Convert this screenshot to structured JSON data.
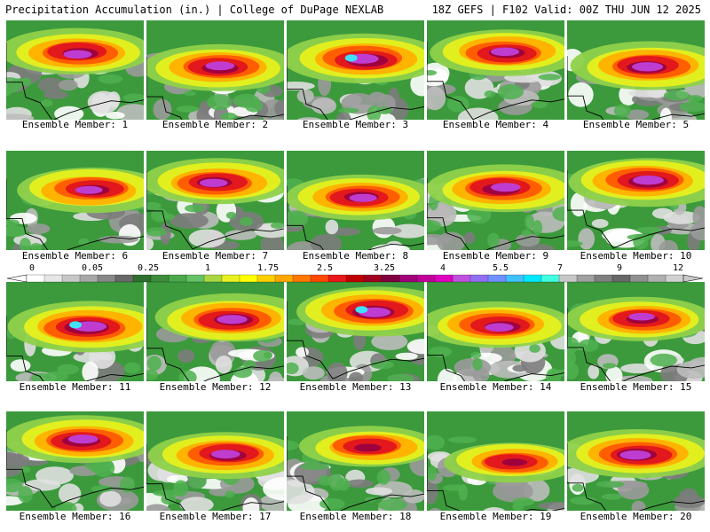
{
  "header": {
    "left": "Precipitation Accumulation (in.) | College of DuPage NEXLAB",
    "right": "18Z GEFS | F102 Valid: 00Z THU JUN 12 2025"
  },
  "colorbar": {
    "labels": [
      "0",
      "0.05",
      "0.25",
      "1",
      "1.75",
      "2.5",
      "3.25",
      "4",
      "5.5",
      "7",
      "9",
      "12"
    ],
    "colors": [
      "#ffffff",
      "#e6e6e6",
      "#c8c8c8",
      "#a8a8a8",
      "#888888",
      "#686868",
      "#2f6f2f",
      "#3c8c3c",
      "#4aa84a",
      "#66c266",
      "#aad640",
      "#e8f020",
      "#ffff00",
      "#ffd000",
      "#ffa800",
      "#ff7800",
      "#ff4800",
      "#e81818",
      "#c00000",
      "#a00020",
      "#800040",
      "#a00078",
      "#c00098",
      "#e000c0",
      "#c050e0",
      "#9070f0",
      "#7090ff",
      "#40c0ff",
      "#00e8ff",
      "#40ffe0",
      "#c8c8c8",
      "#a0a0a0",
      "#808080",
      "#686868",
      "#909090",
      "#b0b0b0",
      "#d0d0d0"
    ]
  },
  "members": [
    {
      "label": "Ensemble Member: 1",
      "intensity": 0.7
    },
    {
      "label": "Ensemble Member: 2",
      "intensity": 0.72
    },
    {
      "label": "Ensemble Member: 3",
      "intensity": 0.85
    },
    {
      "label": "Ensemble Member: 4",
      "intensity": 0.7
    },
    {
      "label": "Ensemble Member: 5",
      "intensity": 0.8
    },
    {
      "label": "Ensemble Member: 6",
      "intensity": 0.65
    },
    {
      "label": "Ensemble Member: 7",
      "intensity": 0.68
    },
    {
      "label": "Ensemble Member: 8",
      "intensity": 0.66
    },
    {
      "label": "Ensemble Member: 9",
      "intensity": 0.75
    },
    {
      "label": "Ensemble Member: 10",
      "intensity": 0.8
    },
    {
      "label": "Ensemble Member: 11",
      "intensity": 0.92
    },
    {
      "label": "Ensemble Member: 12",
      "intensity": 0.78
    },
    {
      "label": "Ensemble Member: 13",
      "intensity": 0.85
    },
    {
      "label": "Ensemble Member: 14",
      "intensity": 0.7
    },
    {
      "label": "Ensemble Member: 15",
      "intensity": 0.6
    },
    {
      "label": "Ensemble Member: 16",
      "intensity": 0.76
    },
    {
      "label": "Ensemble Member: 17",
      "intensity": 0.72
    },
    {
      "label": "Ensemble Member: 18",
      "intensity": 0.45
    },
    {
      "label": "Ensemble Member: 19",
      "intensity": 0.4
    },
    {
      "label": "Ensemble Member: 20",
      "intensity": 0.8
    }
  ]
}
